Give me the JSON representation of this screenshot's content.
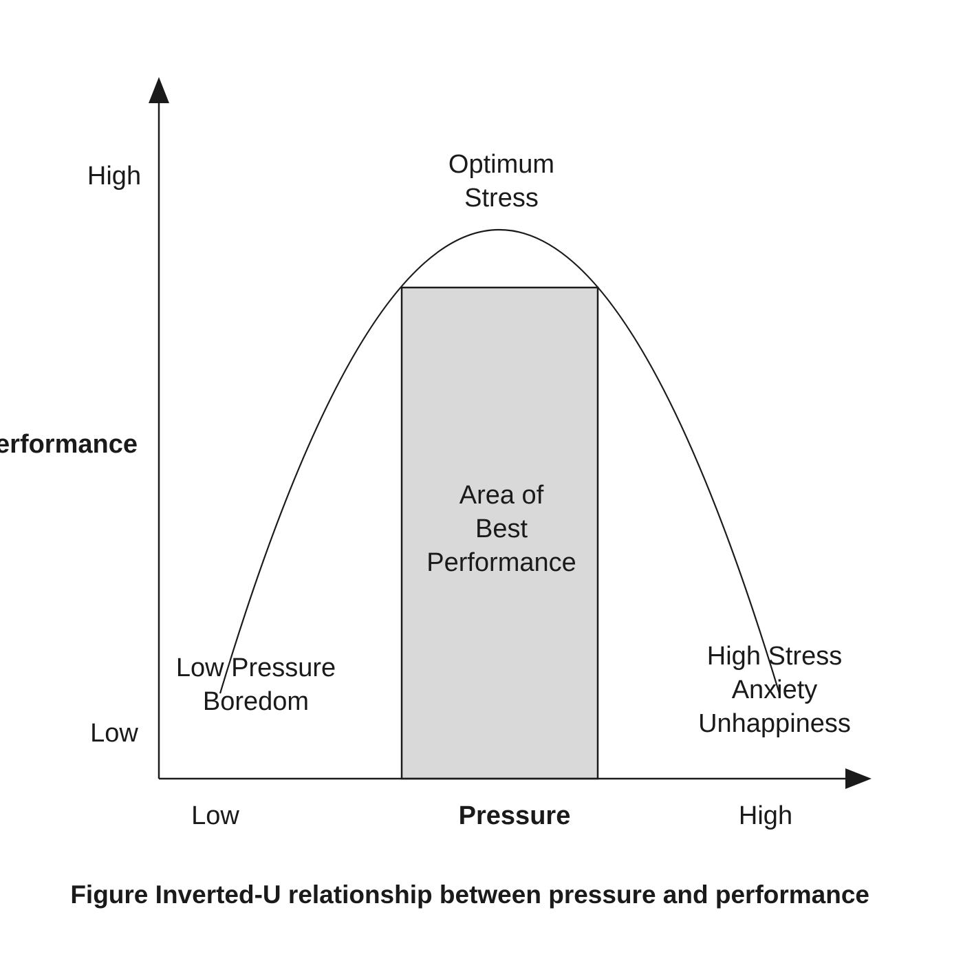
{
  "y_axis": {
    "label": "Performance",
    "high_label": "High",
    "low_label": "Low"
  },
  "x_axis": {
    "label": "Pressure",
    "low_label": "Low",
    "high_label": "High"
  },
  "peak_label": {
    "line1": "Optimum",
    "line2": "Stress"
  },
  "area_label": {
    "line1": "Area of",
    "line2": "Best",
    "line3": "Performance"
  },
  "low_end_label": {
    "line1": "Low Pressure",
    "line2": "Boredom"
  },
  "high_end_label": {
    "line1": "High Stress",
    "line2": "Anxiety",
    "line3": "Unhappiness"
  },
  "caption": "Figure  Inverted-U relationship between pressure and performance",
  "colors": {
    "ink": "#1a1a1a",
    "area_fill": "#d9d9d9",
    "background": "#ffffff"
  }
}
